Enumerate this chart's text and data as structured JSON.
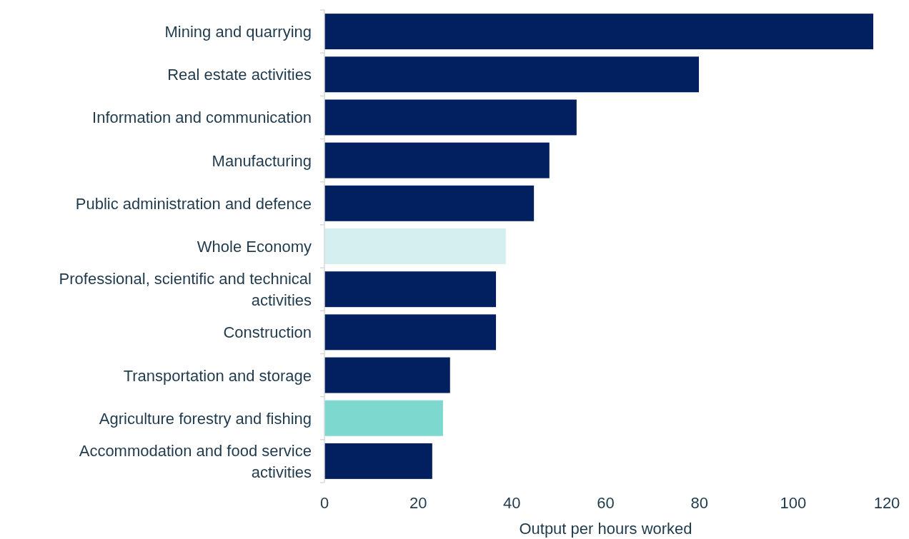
{
  "chart_data": {
    "type": "bar",
    "orientation": "horizontal",
    "xlabel": "Output per hours worked",
    "categories": [
      "Mining and quarrying",
      "Real estate activities",
      "Information and communication",
      "Manufacturing",
      "Public administration and defence",
      "Whole Economy",
      "Professional, scientific and technical activities",
      "Construction",
      "Transportation and storage",
      "Agriculture forestry and fishing",
      "Accommodation and food service activities"
    ],
    "values": [
      117.1,
      79.9,
      53.8,
      48.0,
      44.7,
      38.7,
      36.6,
      36.6,
      26.8,
      25.3,
      23.0
    ],
    "colors": [
      "#022060",
      "#022060",
      "#022060",
      "#022060",
      "#022060",
      "#d4efef",
      "#022060",
      "#022060",
      "#022060",
      "#7dd8d0",
      "#022060"
    ],
    "xlim": [
      0,
      120
    ],
    "xticks": [
      0,
      20,
      40,
      60,
      80,
      100,
      120
    ],
    "grid": false
  }
}
